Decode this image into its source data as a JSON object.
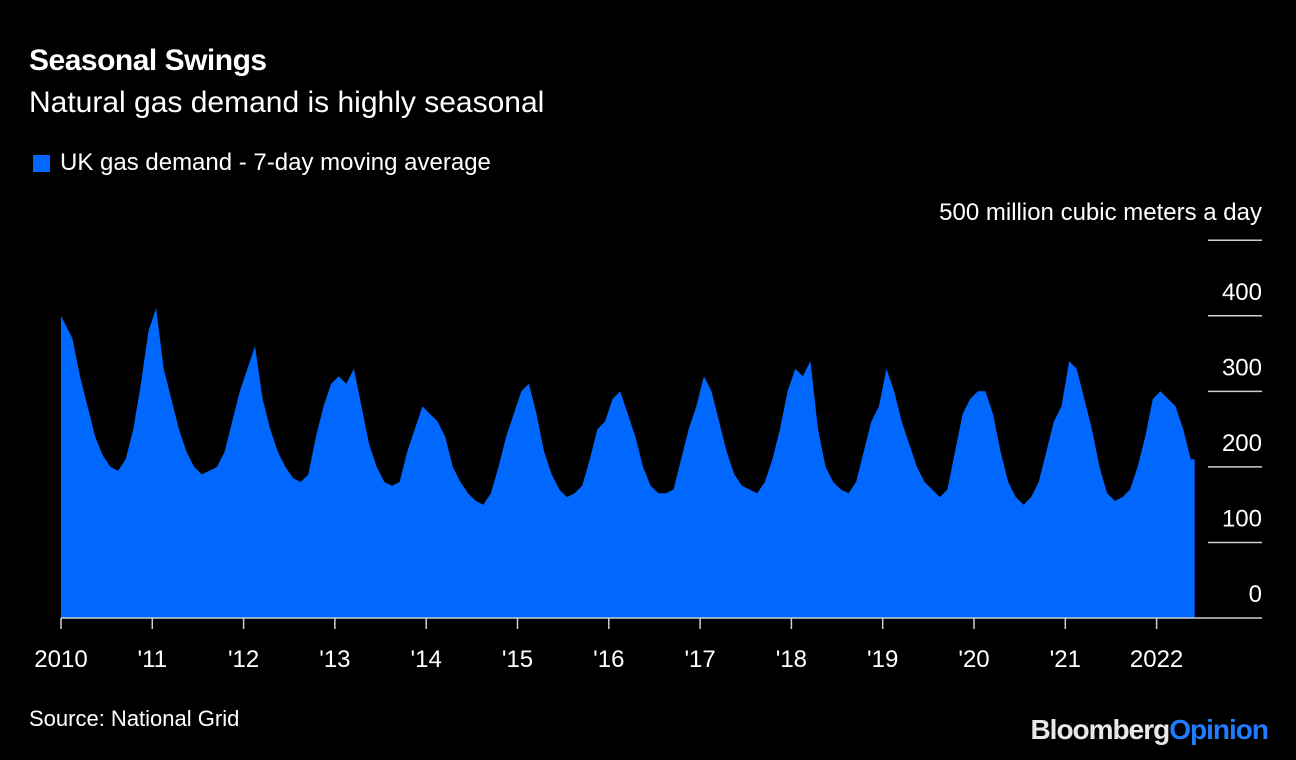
{
  "chart_data": {
    "type": "area",
    "title": "Seasonal Swings",
    "subtitle": "Natural gas demand is highly seasonal",
    "legend": [
      {
        "name": "UK gas demand - 7-day moving average",
        "color": "#0068ff"
      }
    ],
    "legend_placement": "top-left",
    "unit_label": "500 million cubic meters a day",
    "ylim": [
      0,
      500
    ],
    "yticks": [
      0,
      100,
      200,
      300,
      400
    ],
    "ytick_labels": [
      "0",
      "100",
      "200",
      "300",
      "400"
    ],
    "yaxis_side": "right",
    "xlim": [
      "2010-01",
      "2022-06"
    ],
    "xticks": [
      2010,
      2011,
      2012,
      2013,
      2014,
      2015,
      2016,
      2017,
      2018,
      2019,
      2020,
      2021,
      2022
    ],
    "xtick_labels": [
      "2010",
      "'11",
      "'12",
      "'13",
      "'14",
      "'15",
      "'16",
      "'17",
      "'18",
      "'19",
      "'20",
      "'21",
      "2022"
    ],
    "x_start": "2010-01",
    "x_frequency": "monthly",
    "values": [
      400,
      370,
      320,
      280,
      240,
      215,
      200,
      195,
      210,
      250,
      310,
      380,
      410,
      330,
      290,
      250,
      220,
      200,
      190,
      195,
      200,
      220,
      260,
      300,
      330,
      360,
      290,
      250,
      220,
      200,
      185,
      180,
      190,
      240,
      280,
      310,
      320,
      310,
      330,
      280,
      230,
      200,
      180,
      175,
      180,
      220,
      250,
      280,
      270,
      260,
      240,
      200,
      180,
      165,
      155,
      150,
      165,
      200,
      240,
      270,
      300,
      310,
      270,
      220,
      190,
      170,
      160,
      165,
      175,
      210,
      250,
      260,
      290,
      300,
      270,
      240,
      200,
      175,
      165,
      165,
      170,
      210,
      250,
      280,
      320,
      300,
      260,
      220,
      190,
      175,
      170,
      165,
      180,
      210,
      250,
      300,
      330,
      320,
      340,
      250,
      200,
      180,
      170,
      165,
      180,
      220,
      260,
      280,
      330,
      300,
      260,
      230,
      200,
      180,
      170,
      160,
      170,
      220,
      270,
      290,
      300,
      300,
      270,
      220,
      180,
      160,
      150,
      160,
      180,
      220,
      260,
      280,
      340,
      330,
      290,
      250,
      200,
      165,
      155,
      160,
      170,
      200,
      240,
      290,
      300,
      290,
      280,
      250,
      210
    ],
    "grid": "short right-side horizontal lines",
    "colors": {
      "area": "#0068ff",
      "background": "#000000",
      "text": "#ffffff"
    }
  },
  "source": "Source: National Grid",
  "logo": {
    "part1": "Bloomberg",
    "part2": "Opinion"
  }
}
